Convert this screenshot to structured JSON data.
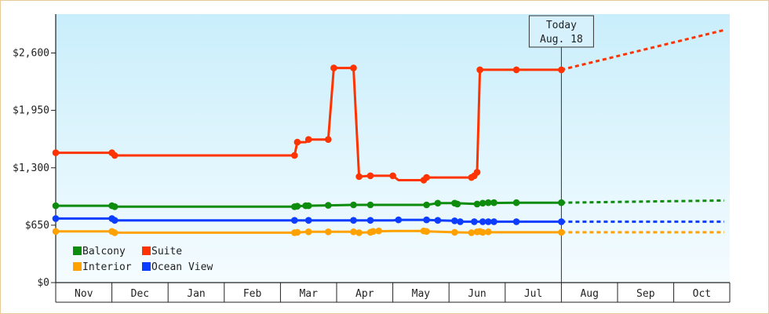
{
  "chart_data": {
    "type": "line",
    "title": "",
    "xlabel": "",
    "ylabel": "",
    "categories": [
      "Nov",
      "Dec",
      "Jan",
      "Feb",
      "Mar",
      "Apr",
      "May",
      "Jun",
      "Jul",
      "Aug",
      "Sep",
      "Oct"
    ],
    "y_ticks": [
      "$0",
      "$650",
      "$1,300",
      "$1,950",
      "$2,600"
    ],
    "y_tick_values": [
      0,
      650,
      1300,
      1950,
      2600
    ],
    "ylim": [
      0,
      3040
    ],
    "today": {
      "line1": "Today",
      "line2": "Aug. 18",
      "x": 9.0
    },
    "legend_position": "bottom-left",
    "series": [
      {
        "name": "Suite",
        "color": "#ff3300",
        "points": [
          [
            0.0,
            1470
          ],
          [
            1.0,
            1470
          ],
          [
            1.05,
            1440
          ],
          [
            4.25,
            1440
          ],
          [
            4.3,
            1590
          ],
          [
            4.45,
            1590
          ],
          [
            4.5,
            1620
          ],
          [
            4.7,
            1620
          ],
          [
            4.85,
            1620
          ],
          [
            4.95,
            2430
          ],
          [
            5.3,
            2430
          ],
          [
            5.4,
            1200
          ],
          [
            5.6,
            1210
          ],
          [
            6.0,
            1210
          ],
          [
            6.1,
            1160
          ],
          [
            6.55,
            1160
          ],
          [
            6.6,
            1190
          ],
          [
            7.4,
            1190
          ],
          [
            7.45,
            1210
          ],
          [
            7.5,
            1250
          ],
          [
            7.55,
            2410
          ],
          [
            8.2,
            2410
          ],
          [
            9.0,
            2410
          ]
        ],
        "markers": [
          [
            0.0,
            1470
          ],
          [
            1.0,
            1470
          ],
          [
            1.05,
            1440
          ],
          [
            4.25,
            1440
          ],
          [
            4.3,
            1590
          ],
          [
            4.5,
            1620
          ],
          [
            4.85,
            1620
          ],
          [
            4.95,
            2430
          ],
          [
            5.3,
            2430
          ],
          [
            5.4,
            1200
          ],
          [
            5.6,
            1210
          ],
          [
            6.0,
            1210
          ],
          [
            6.55,
            1160
          ],
          [
            6.6,
            1190
          ],
          [
            7.4,
            1190
          ],
          [
            7.45,
            1210
          ],
          [
            7.5,
            1250
          ],
          [
            7.55,
            2410
          ],
          [
            8.2,
            2410
          ],
          [
            9.0,
            2410
          ]
        ],
        "forecast": [
          [
            9.0,
            2410
          ],
          [
            11.9,
            2860
          ]
        ]
      },
      {
        "name": "Balcony",
        "color": "#0e8c0e",
        "points": [
          [
            0.0,
            870
          ],
          [
            1.0,
            870
          ],
          [
            1.05,
            860
          ],
          [
            4.25,
            860
          ],
          [
            4.3,
            865
          ],
          [
            4.45,
            870
          ],
          [
            4.85,
            875
          ],
          [
            5.3,
            880
          ],
          [
            5.6,
            880
          ],
          [
            6.6,
            880
          ],
          [
            6.8,
            900
          ],
          [
            7.1,
            900
          ],
          [
            7.5,
            890
          ],
          [
            7.6,
            900
          ],
          [
            8.2,
            905
          ],
          [
            9.0,
            905
          ]
        ],
        "markers": [
          [
            0.0,
            870
          ],
          [
            1.0,
            870
          ],
          [
            1.05,
            860
          ],
          [
            4.25,
            860
          ],
          [
            4.3,
            865
          ],
          [
            4.45,
            870
          ],
          [
            4.5,
            870
          ],
          [
            4.85,
            875
          ],
          [
            5.3,
            880
          ],
          [
            5.6,
            880
          ],
          [
            6.6,
            880
          ],
          [
            6.8,
            900
          ],
          [
            7.1,
            900
          ],
          [
            7.15,
            890
          ],
          [
            7.5,
            890
          ],
          [
            7.6,
            900
          ],
          [
            7.7,
            905
          ],
          [
            7.8,
            905
          ],
          [
            8.2,
            905
          ],
          [
            9.0,
            905
          ]
        ],
        "forecast": [
          [
            9.0,
            905
          ],
          [
            11.9,
            930
          ]
        ]
      },
      {
        "name": "Ocean View",
        "color": "#0b3cff",
        "points": [
          [
            0.0,
            725
          ],
          [
            1.0,
            725
          ],
          [
            1.05,
            705
          ],
          [
            4.25,
            705
          ],
          [
            4.3,
            705
          ],
          [
            4.5,
            705
          ],
          [
            5.3,
            705
          ],
          [
            5.6,
            705
          ],
          [
            6.0,
            705
          ],
          [
            6.1,
            710
          ],
          [
            6.6,
            710
          ],
          [
            6.8,
            705
          ],
          [
            7.1,
            700
          ],
          [
            7.2,
            690
          ],
          [
            7.6,
            690
          ],
          [
            7.7,
            690
          ],
          [
            8.2,
            690
          ],
          [
            9.0,
            690
          ]
        ],
        "markers": [
          [
            0.0,
            725
          ],
          [
            1.0,
            725
          ],
          [
            1.05,
            705
          ],
          [
            4.25,
            705
          ],
          [
            4.5,
            705
          ],
          [
            5.3,
            705
          ],
          [
            5.6,
            705
          ],
          [
            6.1,
            710
          ],
          [
            6.6,
            710
          ],
          [
            6.8,
            705
          ],
          [
            7.1,
            700
          ],
          [
            7.2,
            690
          ],
          [
            7.45,
            690
          ],
          [
            7.6,
            690
          ],
          [
            7.7,
            690
          ],
          [
            7.8,
            690
          ],
          [
            8.2,
            690
          ],
          [
            9.0,
            690
          ]
        ],
        "forecast": [
          [
            9.0,
            690
          ],
          [
            11.9,
            690
          ]
        ]
      },
      {
        "name": "Interior",
        "color": "#ffa200",
        "points": [
          [
            0.0,
            580
          ],
          [
            1.0,
            580
          ],
          [
            1.05,
            565
          ],
          [
            4.25,
            565
          ],
          [
            4.5,
            575
          ],
          [
            5.3,
            575
          ],
          [
            5.4,
            565
          ],
          [
            5.6,
            570
          ],
          [
            5.65,
            580
          ],
          [
            6.0,
            585
          ],
          [
            6.55,
            585
          ],
          [
            6.6,
            580
          ],
          [
            7.1,
            570
          ],
          [
            7.4,
            565
          ],
          [
            7.55,
            575
          ],
          [
            7.6,
            570
          ],
          [
            8.2,
            570
          ],
          [
            9.0,
            570
          ]
        ],
        "markers": [
          [
            0.0,
            580
          ],
          [
            1.0,
            580
          ],
          [
            1.05,
            565
          ],
          [
            4.25,
            565
          ],
          [
            4.3,
            570
          ],
          [
            4.5,
            575
          ],
          [
            4.85,
            575
          ],
          [
            5.3,
            575
          ],
          [
            5.4,
            565
          ],
          [
            5.6,
            570
          ],
          [
            5.65,
            580
          ],
          [
            5.75,
            585
          ],
          [
            6.55,
            585
          ],
          [
            6.6,
            580
          ],
          [
            7.1,
            570
          ],
          [
            7.4,
            565
          ],
          [
            7.5,
            575
          ],
          [
            7.55,
            580
          ],
          [
            7.6,
            570
          ],
          [
            7.7,
            575
          ],
          [
            9.0,
            570
          ]
        ],
        "forecast": [
          [
            9.0,
            570
          ],
          [
            11.9,
            570
          ]
        ]
      }
    ],
    "legend": [
      {
        "name": "Balcony",
        "color": "#0e8c0e"
      },
      {
        "name": "Suite",
        "color": "#ff3300"
      },
      {
        "name": "Interior",
        "color": "#ffa200"
      },
      {
        "name": "Ocean View",
        "color": "#0b3cff"
      }
    ]
  }
}
